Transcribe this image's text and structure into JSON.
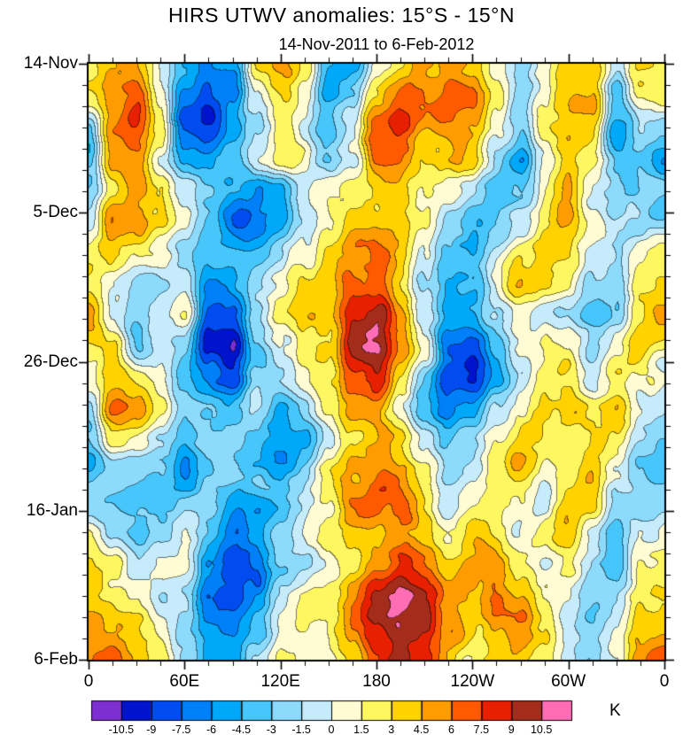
{
  "chart_data": {
    "type": "heatmap",
    "title": "HIRS UTWV anomalies: 15°S - 15°N",
    "subtitle": "14-Nov-2011 to 6-Feb-2012",
    "x_axis": {
      "range_deg": [
        0,
        360
      ],
      "minor_step": 15,
      "ticks": [
        {
          "lon": 0,
          "label": "0"
        },
        {
          "lon": 60,
          "label": "60E"
        },
        {
          "lon": 120,
          "label": "120E"
        },
        {
          "lon": 180,
          "label": "180"
        },
        {
          "lon": 240,
          "label": "120W"
        },
        {
          "lon": 300,
          "label": "60W"
        },
        {
          "lon": 360,
          "label": "0"
        }
      ]
    },
    "y_axis": {
      "range_days": [
        0,
        84
      ],
      "minor_step": 3,
      "ticks": [
        {
          "day": 0,
          "label": "14-Nov"
        },
        {
          "day": 21,
          "label": "5-Dec"
        },
        {
          "day": 42,
          "label": "26-Dec"
        },
        {
          "day": 63,
          "label": "16-Jan"
        },
        {
          "day": 84,
          "label": "6-Feb"
        }
      ]
    },
    "colorbar": {
      "unit": "K",
      "levels": [
        -10.5,
        -9,
        -7.5,
        -6,
        -4.5,
        -3,
        -1.5,
        0,
        1.5,
        3,
        4.5,
        6,
        7.5,
        9,
        10.5
      ],
      "tick_labels": [
        "-10.5",
        "-9",
        "-7.5",
        "-6",
        "-4.5",
        "-3",
        "-1.5",
        "0",
        "1.5",
        "3",
        "4.5",
        "6",
        "7.5",
        "9",
        "10.5"
      ],
      "colors": [
        "#7d30cf",
        "#0013cd",
        "#004cf0",
        "#0080f8",
        "#00a8fa",
        "#46c6fa",
        "#8cdafc",
        "#c6ecfc",
        "#fffcd4",
        "#fff760",
        "#ffd200",
        "#ff9c00",
        "#ff5a00",
        "#e62000",
        "#a32c1a",
        "#ff6eb4"
      ]
    },
    "field": {
      "description": "Estimated upper-troposphere water-vapour anomaly (K), coarse grid read from the plot; columns = longitude 0..345E step 15deg (cyclic), rows = time 14-Nov-2011 to 6-Feb-2012",
      "nx": 24,
      "ny": 20,
      "lon_step_deg": 15,
      "day_step": 4.42,
      "units": "K",
      "values": [
        [
          2,
          4,
          4,
          0,
          -5,
          -7,
          -5,
          2,
          4,
          2,
          -4,
          -4,
          2,
          3,
          5,
          6,
          5,
          1,
          -2,
          2,
          5,
          4,
          -2,
          3
        ],
        [
          3,
          5,
          6,
          1,
          -7,
          -9,
          -7,
          0,
          3,
          1,
          -5,
          -3,
          3,
          6,
          6,
          7,
          6,
          2,
          -3,
          1,
          5,
          5,
          -4,
          2
        ],
        [
          -2,
          6,
          7,
          2,
          -8,
          -10,
          -7,
          -2,
          2,
          0,
          -5,
          -2,
          6,
          8,
          5,
          6,
          5,
          0,
          -4,
          2,
          4,
          3,
          -5,
          -1
        ],
        [
          -4,
          4,
          5,
          0,
          -6,
          -7,
          -4,
          -1,
          1,
          2,
          -3,
          0,
          7,
          7,
          4,
          4,
          3,
          -2,
          -5,
          0,
          3,
          1,
          -4,
          -3
        ],
        [
          -3,
          3,
          5,
          2,
          -2,
          -3,
          -5,
          -6,
          -5,
          -1,
          2,
          2,
          3,
          4,
          2,
          1,
          -1,
          -3,
          -2,
          2,
          4,
          -1,
          -3,
          -2
        ],
        [
          -2,
          5,
          6,
          3,
          -1,
          -4,
          -6,
          -7,
          -6,
          -2,
          1,
          4,
          4,
          5,
          2,
          -2,
          -4,
          -2,
          0,
          3,
          5,
          2,
          -1,
          -2
        ],
        [
          1,
          3,
          2,
          0,
          -3,
          -5,
          -4,
          -4,
          -3,
          0,
          3,
          6,
          6,
          4,
          0,
          -4,
          -5,
          -1,
          2,
          4,
          3,
          0,
          -2,
          1
        ],
        [
          3,
          1,
          -2,
          -3,
          -1,
          -6,
          -6,
          -2,
          0,
          2,
          4,
          7,
          7,
          3,
          -2,
          -5,
          -4,
          0,
          3,
          2,
          1,
          -2,
          -4,
          2
        ],
        [
          4,
          -1,
          -4,
          -2,
          1,
          -7,
          -8,
          -3,
          1,
          3,
          3,
          9,
          10,
          5,
          -1,
          -6,
          -6,
          -2,
          1,
          -1,
          -2,
          -4,
          -2,
          3
        ],
        [
          2,
          4,
          -3,
          -1,
          -2,
          -9,
          -11,
          -4,
          0,
          2,
          4,
          10,
          11,
          6,
          1,
          -7,
          -8,
          -4,
          0,
          2,
          1,
          -3,
          1,
          4
        ],
        [
          1,
          5,
          2,
          0,
          -4,
          -7,
          -10,
          -3,
          -2,
          1,
          3,
          8,
          9,
          4,
          -2,
          -8,
          -9,
          -5,
          -1,
          3,
          4,
          0,
          3,
          2
        ],
        [
          -1,
          6,
          4,
          1,
          -3,
          -4,
          -5,
          -1,
          -4,
          -2,
          2,
          5,
          6,
          2,
          -3,
          -7,
          -6,
          -2,
          1,
          4,
          5,
          2,
          4,
          0
        ],
        [
          -3,
          2,
          1,
          -2,
          -5,
          -2,
          -3,
          -4,
          -6,
          -4,
          0,
          4,
          5,
          4,
          0,
          -4,
          -3,
          1,
          3,
          2,
          3,
          4,
          2,
          -2
        ],
        [
          -4,
          -1,
          -2,
          -4,
          -6,
          -4,
          -1,
          -3,
          -5,
          -3,
          2,
          5,
          6,
          5,
          2,
          -2,
          -1,
          2,
          4,
          1,
          2,
          5,
          1,
          -3
        ],
        [
          -2,
          -3,
          -5,
          -5,
          -4,
          -2,
          -4,
          -4,
          -4,
          -2,
          1,
          6,
          7,
          6,
          3,
          0,
          2,
          3,
          2,
          -1,
          3,
          4,
          -1,
          -2
        ],
        [
          1,
          -2,
          -4,
          -3,
          -1,
          -3,
          -6,
          -5,
          -2,
          0,
          2,
          4,
          5,
          7,
          5,
          2,
          4,
          2,
          0,
          2,
          4,
          1,
          -3,
          0
        ],
        [
          3,
          2,
          -2,
          -1,
          0,
          -5,
          -8,
          -7,
          -3,
          -2,
          0,
          3,
          6,
          8,
          6,
          3,
          5,
          6,
          3,
          0,
          2,
          -2,
          -4,
          2
        ],
        [
          4,
          3,
          1,
          -2,
          -2,
          -7,
          -9,
          -6,
          -1,
          1,
          2,
          4,
          8,
          11,
          9,
          5,
          4,
          7,
          5,
          1,
          -1,
          -3,
          -2,
          3
        ],
        [
          5,
          5,
          3,
          0,
          -3,
          -6,
          -7,
          -4,
          0,
          2,
          1,
          5,
          9,
          11,
          10,
          6,
          3,
          5,
          6,
          2,
          -2,
          -4,
          -1,
          4
        ],
        [
          6,
          6,
          4,
          2,
          -2,
          -4,
          -5,
          -2,
          1,
          1,
          0,
          4,
          8,
          10,
          8,
          4,
          2,
          3,
          4,
          3,
          -1,
          -2,
          0,
          5
        ]
      ]
    },
    "texture": {
      "seed": 7,
      "octaves": [
        {
          "scale": 60,
          "amp": 1.0
        },
        {
          "scale": 28,
          "amp": 1.2
        },
        {
          "scale": 12,
          "amp": 0.55
        }
      ]
    }
  }
}
